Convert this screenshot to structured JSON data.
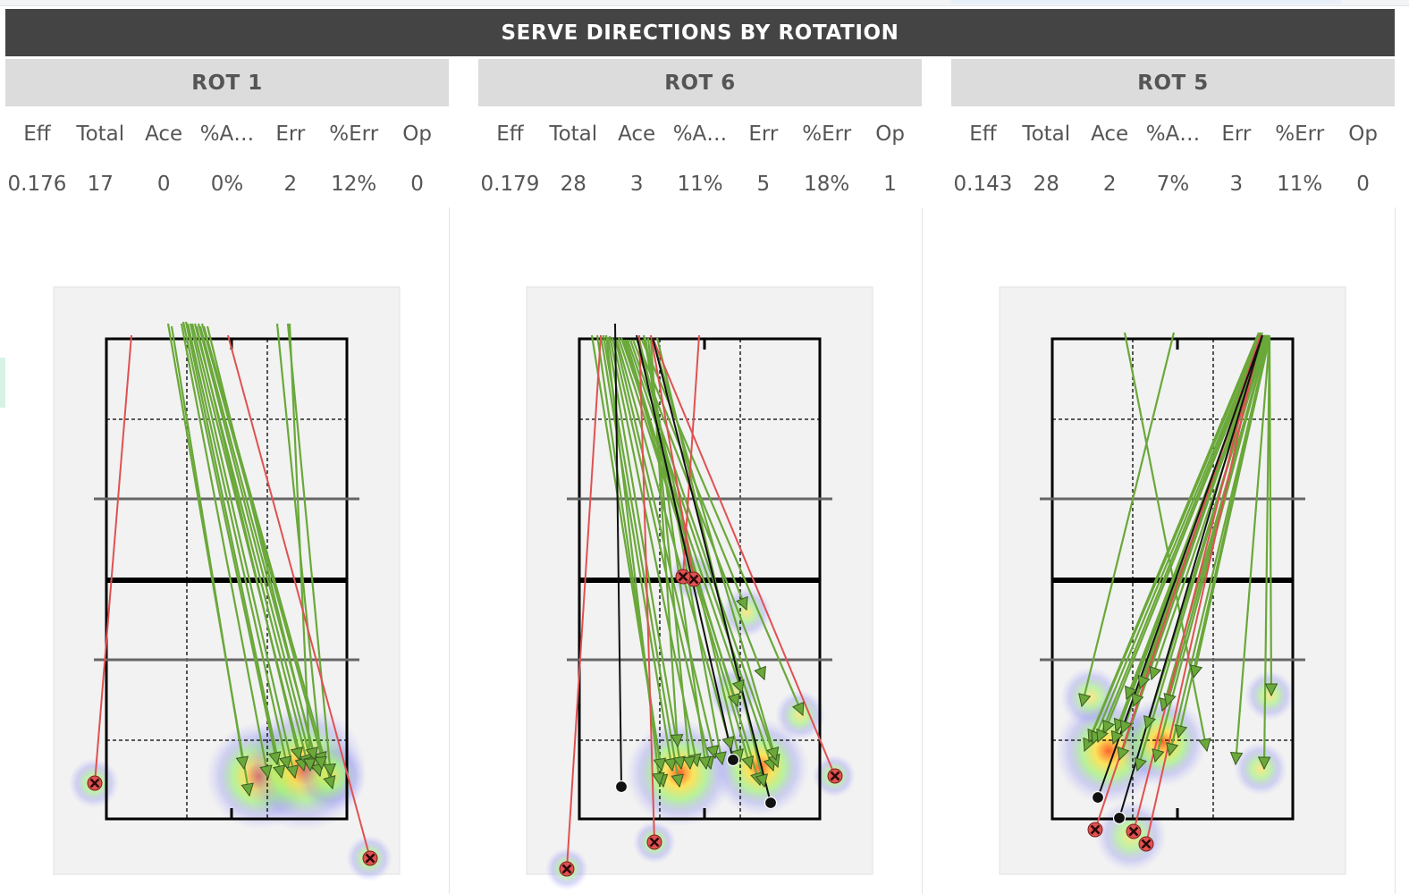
{
  "title": "SERVE DIRECTIONS BY ROTATION",
  "stat_labels": [
    "Eff",
    "Total",
    "Ace",
    "%A…",
    "Err",
    "%Err",
    "Op"
  ],
  "colors": {
    "header_bg": "#444444",
    "rot_bg": "#dcdcdc",
    "in_play": "#6aa83a",
    "error": "#e05151",
    "ace": "#111111",
    "court_bg": "#f2f2f2"
  },
  "rotations": [
    {
      "name": "ROT 1",
      "stats": [
        "0.176",
        "17",
        "0",
        "0%",
        "2",
        "12%",
        "0"
      ],
      "serves": {
        "in_play": [
          [
            188,
            362,
            279,
            890
          ],
          [
            192,
            365,
            273,
            860
          ],
          [
            205,
            360,
            310,
            855
          ],
          [
            208,
            360,
            315,
            870
          ],
          [
            210,
            362,
            322,
            860
          ],
          [
            213,
            362,
            330,
            870
          ],
          [
            215,
            362,
            340,
            862
          ],
          [
            218,
            362,
            345,
            858
          ],
          [
            220,
            365,
            335,
            850
          ],
          [
            222,
            362,
            350,
            860
          ],
          [
            224,
            365,
            358,
            868
          ],
          [
            226,
            362,
            362,
            855
          ],
          [
            228,
            365,
            372,
            882
          ],
          [
            232,
            365,
            352,
            850
          ],
          [
            203,
            362,
            300,
            870
          ],
          [
            310,
            362,
            360,
            860
          ],
          [
            322,
            362,
            370,
            868
          ],
          [
            324,
            362,
            347,
            862
          ]
        ],
        "error": [
          [
            147,
            375,
            106,
            876
          ],
          [
            255,
            375,
            414,
            960
          ]
        ],
        "ace": []
      },
      "heat": [
        [
          290,
          868,
          60
        ],
        [
          340,
          860,
          70
        ],
        [
          370,
          868,
          40
        ],
        [
          105,
          876,
          28
        ],
        [
          413,
          960,
          26
        ]
      ]
    },
    {
      "name": "ROT 6",
      "stats": [
        "0.179",
        "28",
        "3",
        "11%",
        "5",
        "18%",
        "1"
      ],
      "serves": {
        "in_play": [
          [
            662,
            375,
            740,
            862
          ],
          [
            668,
            375,
            742,
            880
          ],
          [
            672,
            375,
            752,
            862
          ],
          [
            675,
            375,
            760,
            880
          ],
          [
            678,
            375,
            738,
            878
          ],
          [
            680,
            378,
            762,
            860
          ],
          [
            682,
            376,
            780,
            857
          ],
          [
            685,
            378,
            795,
            860
          ],
          [
            688,
            378,
            800,
            848
          ],
          [
            690,
            380,
            818,
            838
          ],
          [
            692,
            378,
            825,
            790
          ],
          [
            695,
            378,
            830,
            775
          ],
          [
            698,
            380,
            840,
            860
          ],
          [
            700,
            380,
            850,
            878
          ],
          [
            702,
            380,
            865,
            862
          ],
          [
            705,
            380,
            870,
            858
          ],
          [
            708,
            380,
            855,
            760
          ],
          [
            712,
            380,
            835,
            682
          ],
          [
            715,
            380,
            828,
            852
          ],
          [
            718,
            380,
            898,
            800
          ],
          [
            720,
            375,
            808,
            855
          ],
          [
            722,
            378,
            790,
            860
          ],
          [
            725,
            378,
            772,
            860
          ],
          [
            728,
            380,
            758,
            835
          ],
          [
            730,
            378,
            868,
            850
          ],
          [
            735,
            378,
            855,
            880
          ]
        ],
        "error": [
          [
            672,
            375,
            634,
            972
          ],
          [
            715,
            375,
            732,
            942
          ],
          [
            728,
            375,
            776,
            648
          ],
          [
            782,
            375,
            764,
            645
          ],
          [
            730,
            378,
            934,
            868
          ]
        ],
        "ace": [
          [
            688,
            362,
            695,
            880
          ],
          [
            712,
            375,
            820,
            850
          ],
          [
            730,
            378,
            862,
            898
          ]
        ]
      },
      "heat": [
        [
          760,
          865,
          60
        ],
        [
          850,
          858,
          55
        ],
        [
          775,
          645,
          26
        ],
        [
          835,
          685,
          28
        ],
        [
          895,
          800,
          28
        ],
        [
          933,
          868,
          24
        ],
        [
          732,
          942,
          24
        ],
        [
          634,
          972,
          24
        ],
        [
          820,
          775,
          28
        ]
      ]
    },
    {
      "name": "ROT 5",
      "stats": [
        "0.143",
        "28",
        "2",
        "7%",
        "3",
        "11%",
        "0"
      ],
      "serves": {
        "in_play": [
          [
            1258,
            372,
            1350,
            840
          ],
          [
            1313,
            372,
            1210,
            790
          ],
          [
            1408,
            372,
            1213,
            840
          ],
          [
            1410,
            372,
            1218,
            830
          ],
          [
            1412,
            372,
            1222,
            832
          ],
          [
            1412,
            375,
            1228,
            830
          ],
          [
            1414,
            375,
            1235,
            820
          ],
          [
            1414,
            375,
            1245,
            832
          ],
          [
            1415,
            375,
            1248,
            818
          ],
          [
            1415,
            375,
            1252,
            850
          ],
          [
            1416,
            375,
            1255,
            820
          ],
          [
            1416,
            375,
            1260,
            782
          ],
          [
            1417,
            375,
            1268,
            790
          ],
          [
            1417,
            375,
            1272,
            862
          ],
          [
            1418,
            375,
            1275,
            770
          ],
          [
            1418,
            375,
            1282,
            815
          ],
          [
            1418,
            375,
            1288,
            760
          ],
          [
            1419,
            375,
            1292,
            852
          ],
          [
            1419,
            375,
            1300,
            795
          ],
          [
            1419,
            375,
            1305,
            790
          ],
          [
            1420,
            375,
            1308,
            845
          ],
          [
            1420,
            375,
            1318,
            825
          ],
          [
            1420,
            378,
            1335,
            758
          ],
          [
            1420,
            378,
            1382,
            855
          ],
          [
            1420,
            378,
            1414,
            860
          ],
          [
            1420,
            378,
            1422,
            778
          ]
        ],
        "error": [
          [
            1410,
            375,
            1225,
            928
          ],
          [
            1410,
            375,
            1268,
            930
          ],
          [
            1410,
            375,
            1282,
            944
          ]
        ],
        "ace": [
          [
            1412,
            375,
            1228,
            892
          ],
          [
            1412,
            375,
            1252,
            915
          ]
        ]
      },
      "heat": [
        [
          1240,
          840,
          60
        ],
        [
          1300,
          830,
          50
        ],
        [
          1220,
          780,
          34
        ],
        [
          1420,
          778,
          28
        ],
        [
          1410,
          860,
          30
        ],
        [
          1265,
          935,
          40
        ]
      ]
    }
  ]
}
